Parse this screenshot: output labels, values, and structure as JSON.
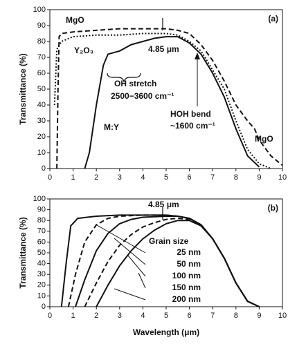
{
  "chart_data": [
    {
      "type": "line",
      "panel_label": "(a)",
      "ylabel": "Transmittance (%)",
      "xlim": [
        0,
        10
      ],
      "ylim": [
        0,
        100
      ],
      "xticks": [
        0,
        1,
        2,
        3,
        4,
        5,
        6,
        7,
        8,
        9,
        10
      ],
      "yticks": [
        0,
        10,
        20,
        30,
        40,
        50,
        60,
        70,
        80,
        90,
        100
      ],
      "marker_x": 4.85,
      "series": [
        {
          "name": "MgO",
          "color": "#111111",
          "style": "dashed",
          "x": [
            0.3,
            0.35,
            0.4,
            0.5,
            1,
            2,
            3,
            4,
            5,
            5.5,
            6,
            6.5,
            7,
            7.5,
            8,
            8.5,
            8.8,
            9,
            9.5,
            10
          ],
          "values": [
            0,
            50,
            83,
            85,
            86,
            87,
            88,
            88,
            88,
            87,
            85,
            78,
            68,
            55,
            40,
            30,
            25,
            18,
            8,
            2
          ]
        },
        {
          "name": "Y₂O₃",
          "color": "#111111",
          "style": "dotted",
          "x": [
            0.2,
            0.3,
            0.5,
            1,
            2,
            3,
            4,
            5,
            5.5,
            6,
            6.5,
            7,
            7.5,
            8,
            8.5,
            9,
            9.5
          ],
          "values": [
            40,
            75,
            80,
            83,
            84,
            84,
            85,
            85,
            84,
            80,
            74,
            62,
            50,
            30,
            12,
            3,
            0
          ]
        },
        {
          "name": "M:Y",
          "color": "#111111",
          "style": "solid",
          "x": [
            1.5,
            1.7,
            2,
            2.3,
            2.5,
            3,
            3.5,
            4,
            4.5,
            5,
            5.5,
            6,
            6.5,
            7,
            7.5,
            8,
            8.5,
            9
          ],
          "values": [
            0,
            10,
            40,
            65,
            72,
            74,
            78,
            80,
            82,
            83,
            83,
            79,
            72,
            60,
            45,
            25,
            8,
            1
          ]
        }
      ],
      "annotations": [
        "MgO",
        "Y₂O₃",
        "4.85 μm",
        "OH  stretch",
        "2500−3600 cm⁻¹",
        "HOH  bend",
        "~1600 cm⁻¹",
        "M:Y",
        "MgO"
      ]
    },
    {
      "type": "line",
      "panel_label": "(b)",
      "ylabel": "Transmittance (%)",
      "xlabel": "Wavelength (μm)",
      "xlim": [
        0,
        10
      ],
      "ylim": [
        0,
        100
      ],
      "xticks": [
        0,
        1,
        2,
        3,
        4,
        5,
        6,
        7,
        8,
        9,
        10
      ],
      "yticks": [
        0,
        10,
        20,
        30,
        40,
        50,
        60,
        70,
        80,
        90,
        100
      ],
      "marker_x": 4.85,
      "legend_title": "Grain size",
      "series": [
        {
          "name": "25 nm",
          "color": "#111111",
          "style": "solid",
          "x": [
            0.5,
            0.7,
            0.9,
            1.2,
            2,
            3,
            4,
            5,
            5.5,
            6,
            6.5,
            7,
            7.5,
            8,
            8.5,
            9
          ],
          "values": [
            0,
            40,
            75,
            82,
            84,
            85,
            85,
            85,
            84,
            82,
            76,
            63,
            45,
            22,
            5,
            0
          ]
        },
        {
          "name": "50 nm",
          "color": "#111111",
          "style": "dashed",
          "x": [
            0.8,
            1.1,
            1.5,
            2,
            2.5,
            3,
            4,
            5,
            5.5,
            6,
            6.5,
            7,
            7.5,
            8,
            8.5,
            9
          ],
          "values": [
            0,
            30,
            60,
            76,
            82,
            84,
            85,
            85,
            84,
            82,
            76,
            63,
            45,
            22,
            5,
            0
          ]
        },
        {
          "name": "100 nm",
          "color": "#111111",
          "style": "solid",
          "x": [
            1.1,
            1.5,
            2,
            2.5,
            3,
            3.5,
            4,
            5,
            5.5,
            6,
            6.5,
            7,
            7.5,
            8,
            8.5,
            9
          ],
          "values": [
            0,
            25,
            52,
            68,
            77,
            81,
            83,
            84,
            84,
            82,
            76,
            63,
            45,
            22,
            5,
            0
          ]
        },
        {
          "name": "150 nm",
          "color": "#111111",
          "style": "dashed",
          "x": [
            1.5,
            2,
            2.5,
            3,
            3.5,
            4,
            4.5,
            5,
            5.5,
            6,
            6.5,
            7,
            7.5,
            8,
            8.5,
            9
          ],
          "values": [
            0,
            22,
            42,
            57,
            67,
            74,
            78,
            81,
            82,
            81,
            76,
            63,
            45,
            22,
            5,
            0
          ]
        },
        {
          "name": "200 nm",
          "color": "#111111",
          "style": "solid",
          "x": [
            2,
            2.5,
            3,
            3.5,
            4,
            4.5,
            5,
            5.5,
            6,
            6.5,
            7,
            7.5,
            8,
            8.5,
            9
          ],
          "values": [
            0,
            20,
            38,
            52,
            63,
            71,
            77,
            80,
            80,
            75,
            63,
            45,
            22,
            5,
            0
          ]
        }
      ],
      "annotations": [
        "4.85 μm"
      ]
    }
  ]
}
